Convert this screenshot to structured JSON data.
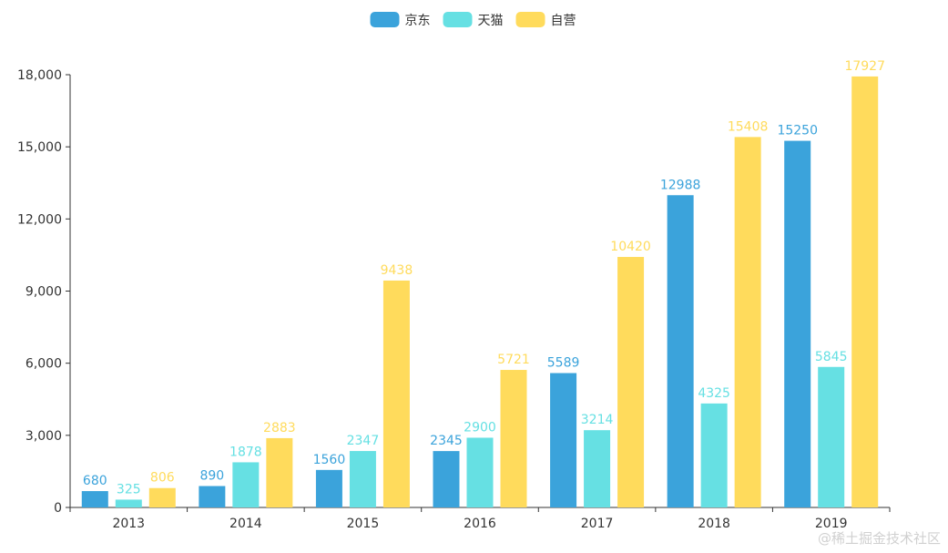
{
  "chart_data": {
    "type": "bar",
    "categories": [
      "2013",
      "2014",
      "2015",
      "2016",
      "2017",
      "2018",
      "2019"
    ],
    "series": [
      {
        "name": "京东",
        "color": "#3BA3DB",
        "values": [
          680,
          890,
          1560,
          2345,
          5589,
          12988,
          15250
        ]
      },
      {
        "name": "天猫",
        "color": "#66E0E3",
        "values": [
          325,
          1878,
          2347,
          2900,
          3214,
          4325,
          5845
        ]
      },
      {
        "name": "自营",
        "color": "#FFDB5C",
        "values": [
          806,
          2883,
          9438,
          5721,
          10420,
          15408,
          17927
        ]
      }
    ],
    "ylim": [
      0,
      18000
    ],
    "yticks": [
      0,
      3000,
      6000,
      9000,
      12000,
      15000,
      18000
    ],
    "ytick_labels": [
      "0",
      "3,000",
      "6,000",
      "9,000",
      "12,000",
      "15,000",
      "18,000"
    ],
    "legend_position": "top-center",
    "grid": false,
    "data_labels": true
  },
  "watermark": "@稀土掘金技术社区"
}
